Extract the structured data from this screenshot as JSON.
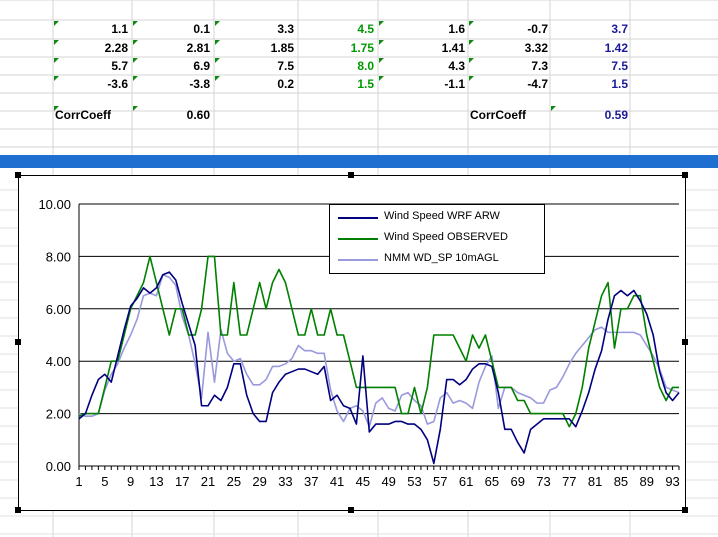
{
  "spreadsheet": {
    "rows": [
      {
        "cells": [
          {
            "text": "1.1",
            "color": "black"
          },
          {
            "text": "0.1",
            "color": "black"
          },
          {
            "text": "3.3",
            "color": "black"
          },
          {
            "text": "4.5",
            "color": "green"
          },
          {
            "text": "1.6",
            "color": "black"
          },
          {
            "text": "-0.7",
            "color": "black"
          },
          {
            "text": "3.7",
            "color": "blue"
          }
        ]
      },
      {
        "cells": [
          {
            "text": "2.28",
            "color": "black"
          },
          {
            "text": "2.81",
            "color": "black"
          },
          {
            "text": "1.85",
            "color": "black"
          },
          {
            "text": "1.75",
            "color": "green"
          },
          {
            "text": "1.41",
            "color": "black"
          },
          {
            "text": "3.32",
            "color": "black"
          },
          {
            "text": "1.42",
            "color": "blue"
          }
        ]
      },
      {
        "cells": [
          {
            "text": "5.7",
            "color": "black"
          },
          {
            "text": "6.9",
            "color": "black"
          },
          {
            "text": "7.5",
            "color": "black"
          },
          {
            "text": "8.0",
            "color": "green"
          },
          {
            "text": "4.3",
            "color": "black"
          },
          {
            "text": "7.3",
            "color": "black"
          },
          {
            "text": "7.5",
            "color": "blue"
          }
        ]
      },
      {
        "cells": [
          {
            "text": "-3.6",
            "color": "black"
          },
          {
            "text": "-3.8",
            "color": "black"
          },
          {
            "text": "0.2",
            "color": "black"
          },
          {
            "text": "1.5",
            "color": "green"
          },
          {
            "text": "-1.1",
            "color": "black"
          },
          {
            "text": "-4.7",
            "color": "black"
          },
          {
            "text": "1.5",
            "color": "blue"
          }
        ]
      }
    ],
    "corr_left_label": "CorrCoeff",
    "corr_left_value": "0.60",
    "corr_right_label": "CorrCoeff",
    "corr_right_value": "0.59",
    "colors": {
      "green": "#009900",
      "blue": "#1a1a99",
      "band": "#1e6fd0"
    }
  },
  "chart_data": {
    "type": "line",
    "x": [
      1,
      2,
      3,
      4,
      5,
      6,
      7,
      8,
      9,
      10,
      11,
      12,
      13,
      14,
      15,
      16,
      17,
      18,
      19,
      20,
      21,
      22,
      23,
      24,
      25,
      26,
      27,
      28,
      29,
      30,
      31,
      32,
      33,
      34,
      35,
      36,
      37,
      38,
      39,
      40,
      41,
      42,
      43,
      44,
      45,
      46,
      47,
      48,
      49,
      50,
      51,
      52,
      53,
      54,
      55,
      56,
      57,
      58,
      59,
      60,
      61,
      62,
      63,
      64,
      65,
      66,
      67,
      68,
      69,
      70,
      71,
      72,
      73,
      74,
      75,
      76,
      77,
      78,
      79,
      80,
      81,
      82,
      83,
      84,
      85,
      86,
      87,
      88,
      89,
      90,
      91,
      92,
      93,
      94
    ],
    "x_tick_labels": [
      "1",
      "5",
      "9",
      "13",
      "17",
      "21",
      "25",
      "29",
      "33",
      "37",
      "41",
      "45",
      "49",
      "53",
      "57",
      "61",
      "65",
      "69",
      "73",
      "77",
      "81",
      "85",
      "89",
      "93"
    ],
    "y_tick_labels": [
      "0.00",
      "2.00",
      "4.00",
      "6.00",
      "8.00",
      "10.00"
    ],
    "ylim": [
      0,
      10
    ],
    "xlim": [
      1,
      94
    ],
    "grid": "horizontal",
    "legend_position": "top-center",
    "series": [
      {
        "name": "Wind Speed WRF ARW",
        "color": "#000080",
        "values": [
          1.8,
          2.0,
          2.7,
          3.3,
          3.5,
          3.2,
          4.2,
          5.2,
          6.1,
          6.4,
          6.8,
          6.6,
          6.8,
          7.3,
          7.4,
          7.1,
          6.2,
          5.4,
          4.6,
          2.3,
          2.3,
          2.7,
          2.5,
          3.0,
          3.9,
          3.9,
          2.7,
          2.0,
          1.7,
          1.7,
          2.8,
          3.2,
          3.5,
          3.6,
          3.7,
          3.7,
          3.6,
          3.5,
          3.8,
          2.5,
          2.7,
          2.3,
          2.2,
          1.6,
          4.2,
          1.3,
          1.6,
          1.6,
          1.6,
          1.7,
          1.7,
          1.6,
          1.6,
          1.4,
          1.0,
          0.1,
          1.4,
          3.3,
          3.3,
          3.1,
          3.3,
          3.7,
          3.9,
          3.9,
          3.8,
          2.8,
          1.4,
          1.4,
          0.9,
          0.5,
          1.4,
          1.6,
          1.8,
          1.8,
          1.8,
          1.8,
          1.8,
          1.5,
          2.1,
          2.8,
          3.7,
          4.4,
          5.6,
          6.5,
          6.7,
          6.5,
          6.7,
          6.3,
          5.8,
          5.0,
          3.6,
          2.8,
          2.5,
          2.8
        ]
      },
      {
        "name": "Wind Speed OBSERVED",
        "color": "#008000",
        "values": [
          1.9,
          2.0,
          2.0,
          2.0,
          3.0,
          4.0,
          4.0,
          5.0,
          6.0,
          6.5,
          7.0,
          8.0,
          7.0,
          6.0,
          5.0,
          6.0,
          6.0,
          5.0,
          5.0,
          6.0,
          8.0,
          8.0,
          5.0,
          5.0,
          7.0,
          5.0,
          5.0,
          6.0,
          7.0,
          6.0,
          7.0,
          7.5,
          7.0,
          6.0,
          5.0,
          5.0,
          6.0,
          5.0,
          5.0,
          6.0,
          5.0,
          5.0,
          4.0,
          3.0,
          3.0,
          3.0,
          3.0,
          3.0,
          3.0,
          3.0,
          2.0,
          2.0,
          3.0,
          2.0,
          3.0,
          5.0,
          5.0,
          5.0,
          5.0,
          4.5,
          4.0,
          5.0,
          4.5,
          5.0,
          4.0,
          3.0,
          3.0,
          3.0,
          2.5,
          2.5,
          2.0,
          2.0,
          2.0,
          2.0,
          2.0,
          2.0,
          1.5,
          2.0,
          3.0,
          4.5,
          5.5,
          6.5,
          7.0,
          4.5,
          6.0,
          6.0,
          6.5,
          6.5,
          5.0,
          4.0,
          3.0,
          2.5,
          3.0,
          3.0
        ]
      },
      {
        "name": "NMM WD_SP 10mAGL",
        "color": "#9999dd",
        "values": [
          2.0,
          1.9,
          1.9,
          2.0,
          2.9,
          3.5,
          3.9,
          4.5,
          5.0,
          5.6,
          6.5,
          6.6,
          6.5,
          7.3,
          7.2,
          6.9,
          5.7,
          5.0,
          3.9,
          2.6,
          5.1,
          3.2,
          5.2,
          4.3,
          4.0,
          4.1,
          3.5,
          3.1,
          3.1,
          3.3,
          3.8,
          3.8,
          3.9,
          4.1,
          4.6,
          4.4,
          4.4,
          4.3,
          4.3,
          2.9,
          2.1,
          1.7,
          2.2,
          2.3,
          2.1,
          1.5,
          2.4,
          2.6,
          2.2,
          2.1,
          2.7,
          2.8,
          2.5,
          2.3,
          1.6,
          1.7,
          2.6,
          2.8,
          2.4,
          2.5,
          2.4,
          2.2,
          3.2,
          3.8,
          4.2,
          2.2,
          3.0,
          3.0,
          2.8,
          2.7,
          2.6,
          2.4,
          2.4,
          2.9,
          3.0,
          3.4,
          3.9,
          4.3,
          4.6,
          4.9,
          5.2,
          5.3,
          5.1,
          5.1,
          5.1,
          5.1,
          5.1,
          5.0,
          4.6,
          4.2,
          3.7,
          3.0,
          2.9,
          2.8
        ]
      }
    ]
  }
}
